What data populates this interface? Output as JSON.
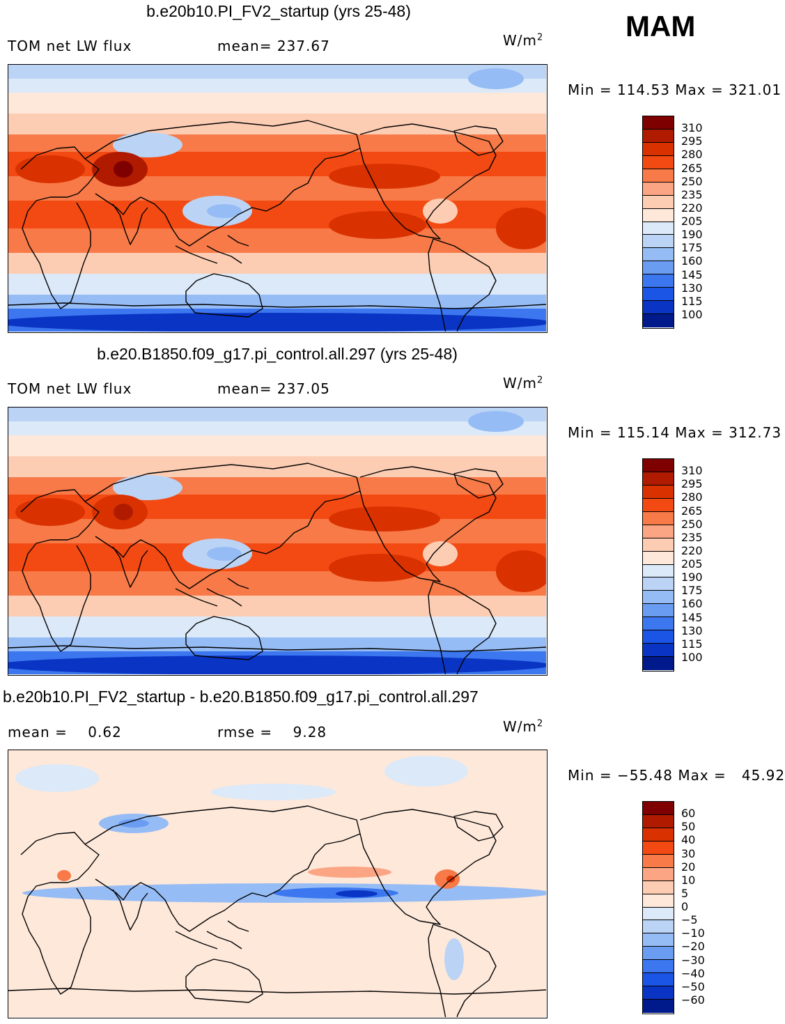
{
  "season": "MAM",
  "unit_base": "W/m",
  "unit_exp": "2",
  "palettes": {
    "abs": [
      "#7f0000",
      "#b01b00",
      "#d93200",
      "#f24a12",
      "#f77a48",
      "#fba584",
      "#fdcdb3",
      "#fee8da",
      "#dbe9f8",
      "#bbd4f6",
      "#96bcf5",
      "#6a9cf2",
      "#3c77ef",
      "#1b55e6",
      "#0a35c4",
      "#001a8c"
    ],
    "diff": [
      "#7f0000",
      "#b01b00",
      "#d93200",
      "#f24a12",
      "#f77a48",
      "#fba584",
      "#fdcdb3",
      "#fee8da",
      "#dbe9f8",
      "#bbd4f6",
      "#96bcf5",
      "#6a9cf2",
      "#3c77ef",
      "#1b55e6",
      "#0a35c4",
      "#001a8c"
    ]
  },
  "chart_data": [
    {
      "type": "heatmap",
      "title": "b.e20b10.PI_FV2_startup (yrs 25-48)",
      "left_label": "TOM net LW flux",
      "mean_label": "mean= 237.67",
      "minmax": "Min = 114.53 Max = 321.01",
      "min": 114.53,
      "max": 321.01,
      "mean": 237.67,
      "levels": [
        "310",
        "295",
        "280",
        "265",
        "250",
        "235",
        "220",
        "205",
        "190",
        "175",
        "160",
        "145",
        "130",
        "115",
        "100"
      ]
    },
    {
      "type": "heatmap",
      "title": "b.e20.B1850.f09_g17.pi_control.all.297 (yrs 25-48)",
      "left_label": "TOM net LW flux",
      "mean_label": "mean= 237.05",
      "minmax": "Min = 115.14 Max = 312.73",
      "min": 115.14,
      "max": 312.73,
      "mean": 237.05,
      "levels": [
        "310",
        "295",
        "280",
        "265",
        "250",
        "235",
        "220",
        "205",
        "190",
        "175",
        "160",
        "145",
        "130",
        "115",
        "100"
      ]
    },
    {
      "type": "heatmap",
      "title": "b.e20b10.PI_FV2_startup - b.e20.B1850.f09_g17.pi_control.all.297",
      "left_label": "mean =    0.62",
      "mean_label": "rmse =    9.28",
      "minmax": "Min = −55.48 Max =   45.92",
      "min": -55.48,
      "max": 45.92,
      "mean": 0.62,
      "rmse": 9.28,
      "levels": [
        "60",
        "50",
        "40",
        "30",
        "20",
        "10",
        "5",
        "0",
        "−5",
        "−10",
        "−20",
        "−30",
        "−40",
        "−50",
        "−60"
      ]
    }
  ]
}
